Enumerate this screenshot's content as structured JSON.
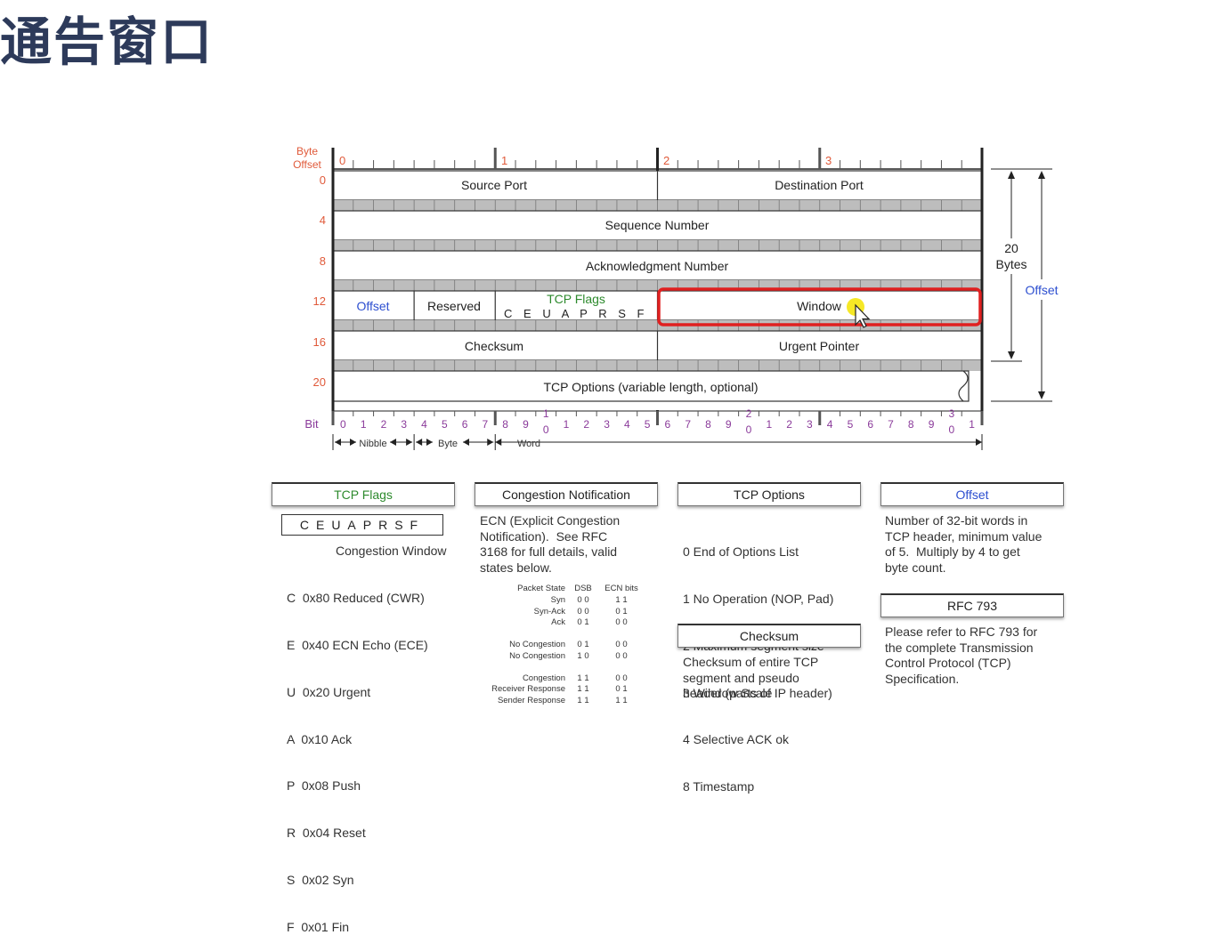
{
  "title": "通告窗口",
  "header": {
    "byte_offset_label": "Byte\nOffset",
    "byte_offset_line1": "Byte",
    "byte_offset_line2": "Offset",
    "byte_marks": [
      "0",
      "1",
      "2",
      "3"
    ],
    "row_offsets": [
      "0",
      "4",
      "8",
      "12",
      "16",
      "20"
    ]
  },
  "fields": {
    "source_port": "Source Port",
    "destination_port": "Destination Port",
    "sequence_number": "Sequence Number",
    "acknowledgment_number": "Acknowledgment Number",
    "offset": "Offset",
    "reserved": "Reserved",
    "tcp_flags_title": "TCP Flags",
    "tcp_flags_letters": "C E U A P R S F",
    "window": "Window",
    "checksum": "Checksum",
    "urgent_pointer": "Urgent Pointer",
    "tcp_options": "TCP Options (variable length, optional)"
  },
  "side": {
    "twenty": "20",
    "bytes": "Bytes",
    "offset": "Offset"
  },
  "bits": {
    "label": "Bit",
    "nibble": "Nibble",
    "byte": "Byte",
    "word": "Word"
  },
  "legend": {
    "tcp_flags": {
      "title": "TCP Flags",
      "letters": "CEUAPRSF",
      "subtitle": "Congestion Window",
      "items": [
        "C  0x80 Reduced (CWR)",
        "E  0x40 ECN Echo (ECE)",
        "U  0x20 Urgent",
        "A  0x10 Ack",
        "P  0x08 Push",
        "R  0x04 Reset",
        "S  0x02 Syn",
        "F  0x01 Fin"
      ]
    },
    "congestion": {
      "title": "Congestion Notification",
      "text": "ECN (Explicit Congestion\nNotification).  See RFC\n3168 for full details, valid\nstates below.",
      "table_header": [
        "Packet State",
        "DSB",
        "ECN bits"
      ],
      "rows": [
        [
          "Syn",
          "0 0",
          "1 1"
        ],
        [
          "Syn-Ack",
          "0 0",
          "0 1"
        ],
        [
          "Ack",
          "0 1",
          "0 0"
        ],
        [
          "",
          "",
          ""
        ],
        [
          "No Congestion",
          "0 1",
          "0 0"
        ],
        [
          "No Congestion",
          "1 0",
          "0 0"
        ],
        [
          "",
          "",
          ""
        ],
        [
          "Congestion",
          "1 1",
          "0 0"
        ],
        [
          "Receiver Response",
          "1 1",
          "0 1"
        ],
        [
          "Sender Response",
          "1 1",
          "1 1"
        ]
      ]
    },
    "tcp_options": {
      "title": "TCP Options",
      "items": [
        "0 End of Options List",
        "1 No Operation (NOP, Pad)",
        "2 Maximum segment size",
        "3 Window Scale",
        "4 Selective ACK ok",
        "8 Timestamp"
      ]
    },
    "checksum": {
      "title": "Checksum",
      "text": "Checksum of entire TCP\nsegment and pseudo\nheader (parts of IP header)"
    },
    "offset": {
      "title": "Offset",
      "text": "Number of 32-bit words in\nTCP header, minimum value\nof 5.  Multiply by 4 to get\nbyte count."
    },
    "rfc": {
      "title": "RFC 793",
      "text": "Please refer to RFC 793 for\nthe complete Transmission\nControl Protocol (TCP)\nSpecification."
    }
  },
  "colors": {
    "title": "#2d3a5a",
    "offset_numbers": "#e05a3a",
    "bit_numbers": "#8a3a9a",
    "flags_green": "#2d8a2d",
    "offset_blue": "#2d4fd0",
    "highlight_red": "#e02020",
    "cursor_yellow": "#f5e400"
  }
}
